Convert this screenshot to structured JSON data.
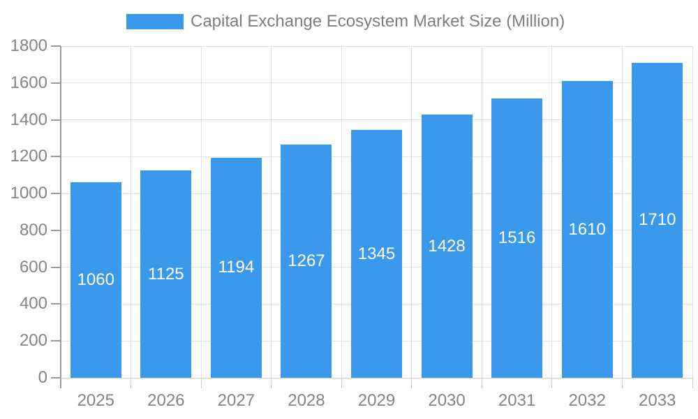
{
  "legend": {
    "label": "Capital Exchange Ecosystem Market Size (Million)"
  },
  "chart_data": {
    "type": "bar",
    "title": "Capital Exchange Ecosystem Market Size (Million)",
    "series_name": "Capital Exchange Ecosystem Market Size (Million)",
    "categories": [
      "2025",
      "2026",
      "2027",
      "2028",
      "2029",
      "2030",
      "2031",
      "2032",
      "2033"
    ],
    "values": [
      1060,
      1125,
      1194,
      1267,
      1345,
      1428,
      1516,
      1610,
      1710
    ],
    "bar_labels": [
      "1060",
      "1125",
      "1194",
      "1267",
      "1345",
      "1428",
      "1516",
      "1610",
      "1710"
    ],
    "xlabel": "",
    "ylabel": "",
    "ylim": [
      0,
      1800
    ],
    "ytick_step": 200,
    "ytick_labels": [
      "0",
      "200",
      "400",
      "600",
      "800",
      "1000",
      "1200",
      "1400",
      "1600",
      "1800"
    ],
    "grid": true,
    "legend_position": "top",
    "bar_label_position": "inside-center"
  },
  "colors": {
    "bar": "#3b99ec",
    "bar_label_text": "#ffffff",
    "grid_line": "#e2e2e2",
    "y_axis_line": "#9b9b9b",
    "x_axis_line": "#cdcdcd",
    "tick_label_text": "#848484",
    "title_text": "#7d7d7d",
    "background": "#ffffff"
  }
}
